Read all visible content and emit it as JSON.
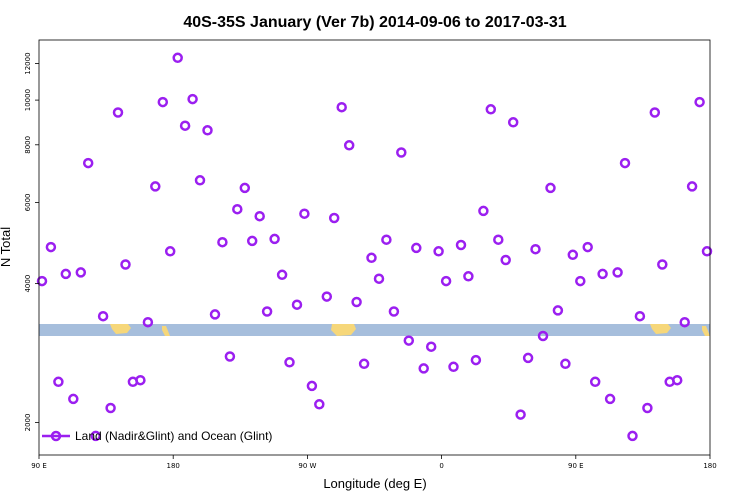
{
  "chart_data": {
    "type": "scatter",
    "title": "40S-35S January (Ver 7b)   2014-09-06 to 2017-03-31",
    "xlabel": "Longitude (deg E)",
    "ylabel": "N Total",
    "x_ticks": [
      {
        "value": 90,
        "label": "90 E"
      },
      {
        "value": 180,
        "label": "180"
      },
      {
        "value": 270,
        "label": "90 W"
      },
      {
        "value": 360,
        "label": "0"
      },
      {
        "value": 450,
        "label": "90 E"
      },
      {
        "value": 540,
        "label": "180"
      }
    ],
    "y_ticks": [
      2000,
      4000,
      6000,
      8000,
      10000,
      12000
    ],
    "y_scale": "log",
    "xlim": [
      90,
      540
    ],
    "ylim": [
      1700,
      13500
    ],
    "grid": false,
    "legend_position": "bottom-left",
    "colors": {
      "series": "#9b1ff0",
      "band": "#a6bedc",
      "land": "#f6d77a"
    },
    "series": [
      {
        "name": "Land (Nadir&Glint) and Ocean (Glint)",
        "marker": "open-circle",
        "points": [
          [
            92,
            4050
          ],
          [
            98,
            4800
          ],
          [
            103,
            2450
          ],
          [
            108,
            4200
          ],
          [
            113,
            2250
          ],
          [
            118,
            4230
          ],
          [
            123,
            7300
          ],
          [
            128,
            1870
          ],
          [
            133,
            3400
          ],
          [
            138,
            2150
          ],
          [
            143,
            9400
          ],
          [
            148,
            4400
          ],
          [
            153,
            2450
          ],
          [
            158,
            2470
          ],
          [
            163,
            3300
          ],
          [
            168,
            6500
          ],
          [
            173,
            9900
          ],
          [
            178,
            4700
          ],
          [
            183,
            12350
          ],
          [
            188,
            8800
          ],
          [
            193,
            10050
          ],
          [
            198,
            6700
          ],
          [
            203,
            8600
          ],
          [
            208,
            3430
          ],
          [
            213,
            4920
          ],
          [
            218,
            2780
          ],
          [
            223,
            5800
          ],
          [
            228,
            6450
          ],
          [
            233,
            4950
          ],
          [
            238,
            5600
          ],
          [
            243,
            3480
          ],
          [
            248,
            5000
          ],
          [
            253,
            4180
          ],
          [
            258,
            2700
          ],
          [
            263,
            3600
          ],
          [
            268,
            5670
          ],
          [
            273,
            2400
          ],
          [
            278,
            2190
          ],
          [
            283,
            3750
          ],
          [
            288,
            5550
          ],
          [
            293,
            9650
          ],
          [
            298,
            7980
          ],
          [
            303,
            3650
          ],
          [
            308,
            2680
          ],
          [
            313,
            4550
          ],
          [
            318,
            4100
          ],
          [
            323,
            4980
          ],
          [
            328,
            3480
          ],
          [
            333,
            7700
          ],
          [
            338,
            3010
          ],
          [
            343,
            4780
          ],
          [
            348,
            2620
          ],
          [
            353,
            2920
          ],
          [
            358,
            4700
          ],
          [
            363,
            4050
          ],
          [
            368,
            2640
          ],
          [
            373,
            4850
          ],
          [
            378,
            4150
          ],
          [
            383,
            2730
          ],
          [
            388,
            5750
          ],
          [
            393,
            9550
          ],
          [
            398,
            4980
          ],
          [
            403,
            4500
          ],
          [
            408,
            8950
          ],
          [
            413,
            2080
          ],
          [
            418,
            2760
          ],
          [
            423,
            4750
          ],
          [
            428,
            3080
          ],
          [
            433,
            6450
          ],
          [
            438,
            3500
          ],
          [
            443,
            2680
          ],
          [
            448,
            4620
          ],
          [
            453,
            4050
          ],
          [
            458,
            4800
          ],
          [
            463,
            2450
          ],
          [
            468,
            4200
          ],
          [
            473,
            2250
          ],
          [
            478,
            4230
          ],
          [
            483,
            7300
          ],
          [
            488,
            1870
          ],
          [
            493,
            3400
          ],
          [
            498,
            2150
          ],
          [
            503,
            9400
          ],
          [
            508,
            4400
          ],
          [
            513,
            2450
          ],
          [
            518,
            2470
          ],
          [
            523,
            3300
          ],
          [
            528,
            6500
          ],
          [
            533,
            9900
          ],
          [
            538,
            4700
          ]
        ]
      }
    ]
  }
}
